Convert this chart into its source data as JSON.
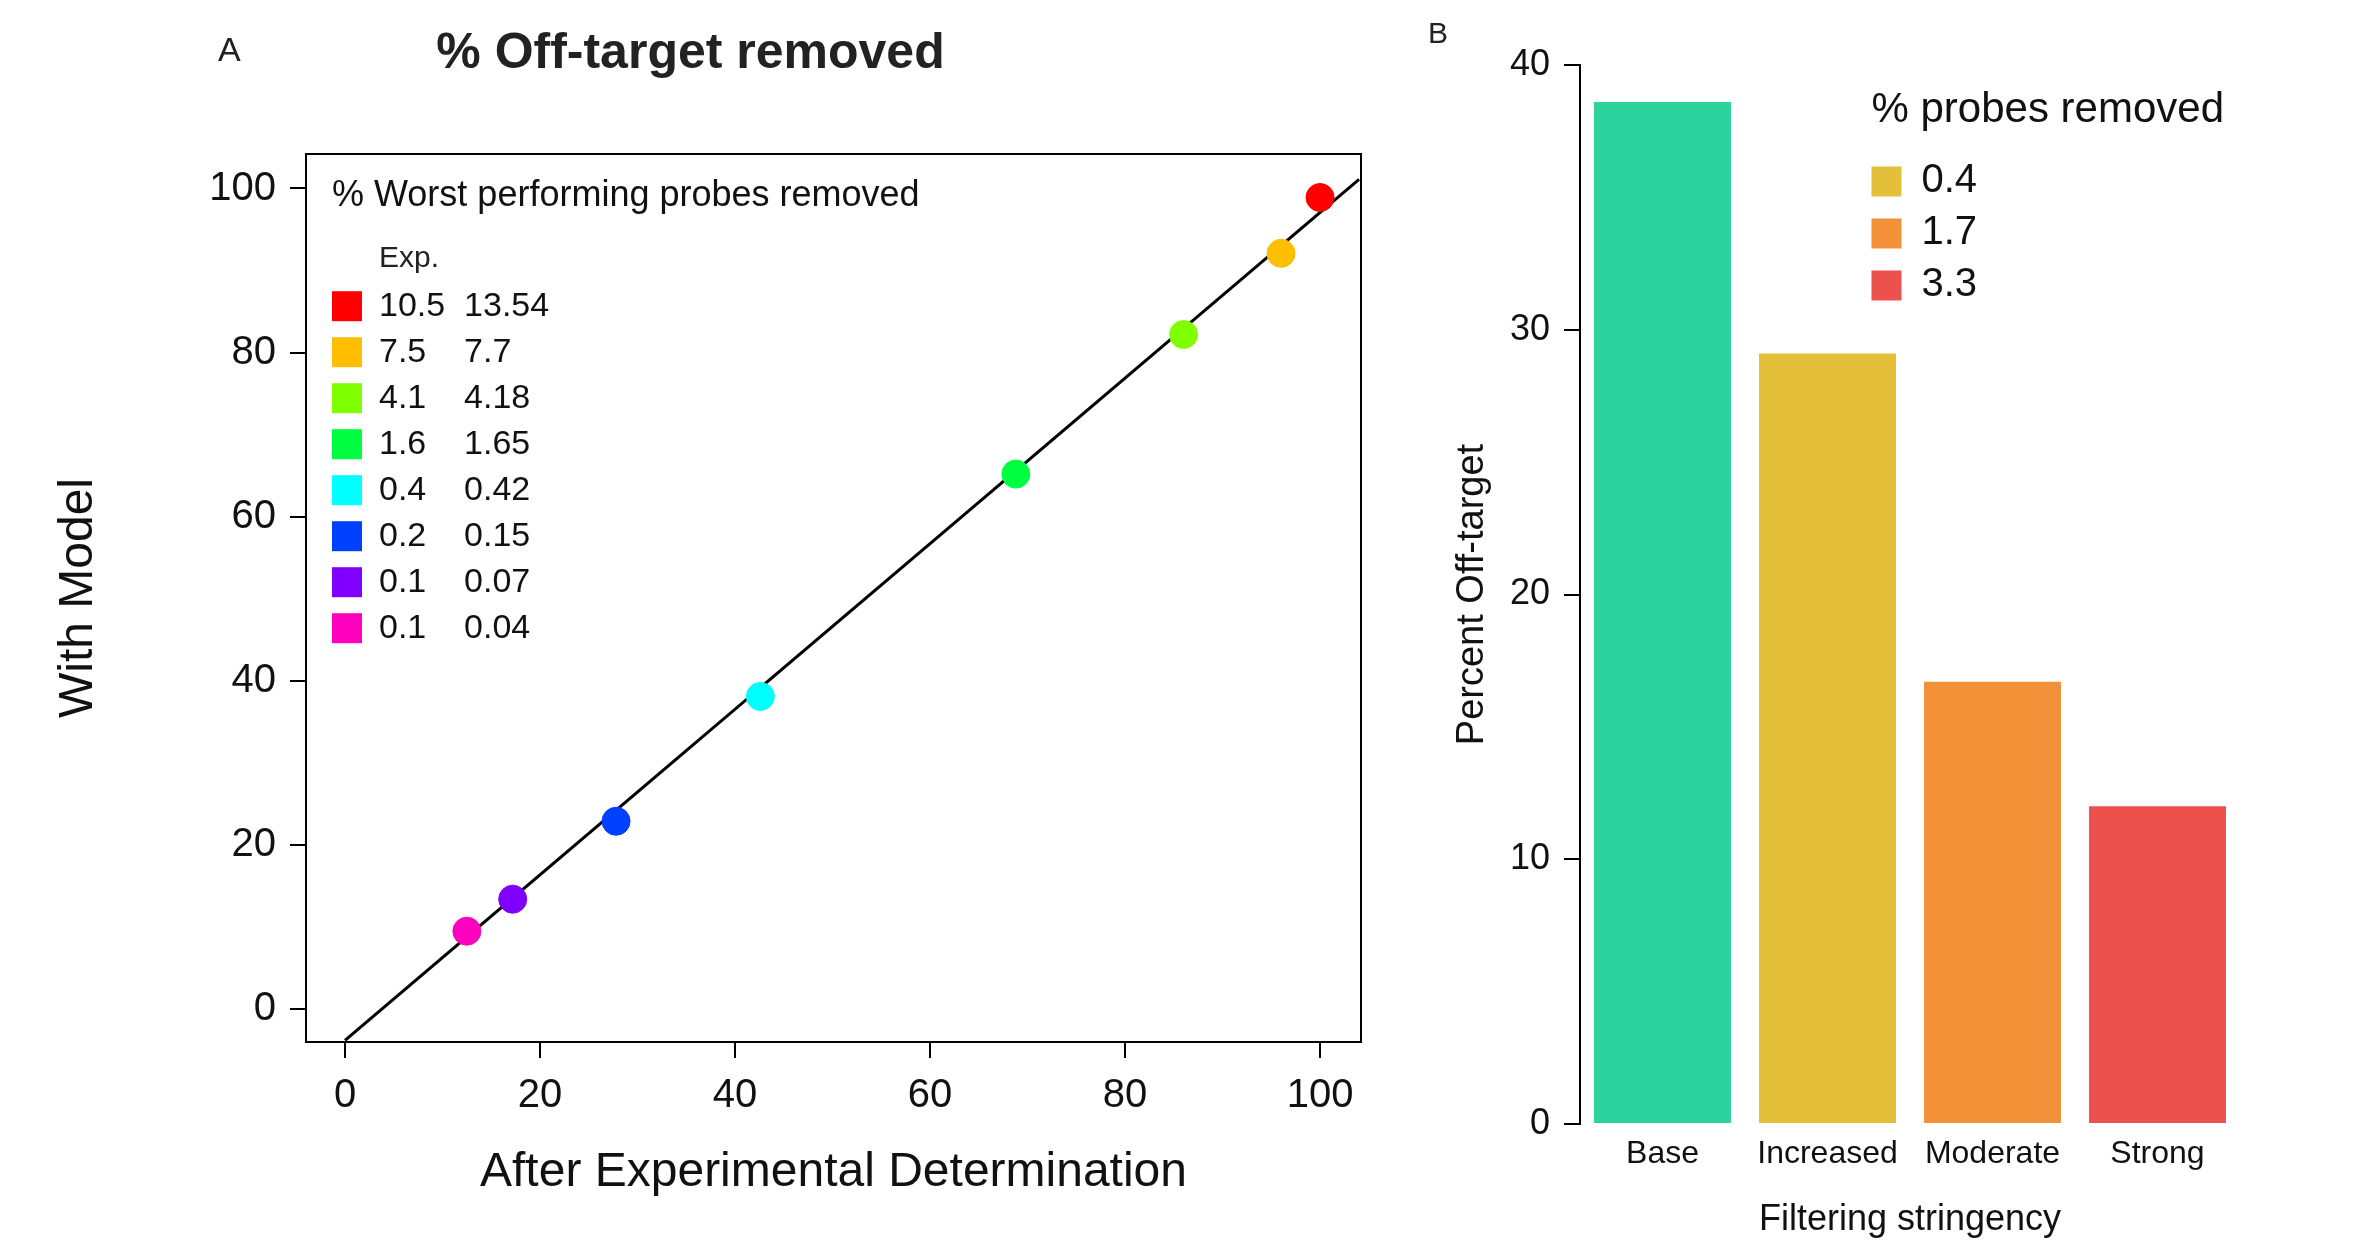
{
  "chart_data": [
    {
      "type": "scatter",
      "title": "% Off-target removed",
      "xlabel": "After Experimental Determination",
      "ylabel": "With Model",
      "legend_title": "% Worst performing probes removed",
      "annotations": [
        "A",
        "Exp."
      ],
      "xlim": [
        -4,
        104.2
      ],
      "ylim": [
        -4,
        104.2
      ],
      "xticks": [
        0,
        20,
        40,
        60,
        80,
        100
      ],
      "yticks": [
        0,
        20,
        40,
        60,
        80,
        100
      ],
      "marker": "circle",
      "legend": "top left",
      "series": [
        {
          "name": "10.5  13.54",
          "color": "#ff0000",
          "x": [
            100
          ],
          "values": [
            98.9
          ]
        },
        {
          "name": "7.5    7.7",
          "color": "#ffbf00",
          "x": [
            96.0
          ],
          "values": [
            92.1
          ]
        },
        {
          "name": "4.1    4.18",
          "color": "#80ff00",
          "x": [
            86.0
          ],
          "values": [
            82.2
          ]
        },
        {
          "name": "1.6    1.65",
          "color": "#00ff40",
          "x": [
            68.8
          ],
          "values": [
            65.2
          ]
        },
        {
          "name": "0.4    0.42",
          "color": "#00ffff",
          "x": [
            42.6
          ],
          "values": [
            38.1
          ]
        },
        {
          "name": "0.2    0.15",
          "color": "#0040ff",
          "x": [
            27.8
          ],
          "values": [
            22.9
          ]
        },
        {
          "name": "0.1    0.07",
          "color": "#8000ff",
          "x": [
            17.2
          ],
          "values": [
            13.4
          ]
        },
        {
          "name": "0.1    0.04",
          "color": "#ff00bf",
          "x": [
            12.5
          ],
          "values": [
            9.5
          ]
        },
        {
          "type": "line",
          "color": "#000000",
          "marker": "none",
          "x": [
            0,
            104
          ],
          "values": [
            -3.8,
            101.1
          ]
        }
      ]
    },
    {
      "type": "bar",
      "xlabel": "Filtering stringency",
      "ylabel": "Percent Off-target",
      "legend_title": "% probes removed",
      "annotations": [
        "B"
      ],
      "categories": [
        "Base",
        "Increased",
        "Moderate",
        "Strong"
      ],
      "ylim": [
        0,
        40
      ],
      "yticks": [
        0,
        10,
        20,
        30,
        40
      ],
      "legend": "top right",
      "series": [
        {
          "color": "#2cd39c",
          "values": [
            38.6,
            null,
            null,
            null
          ]
        },
        {
          "name": "0.4",
          "color": "#e3bf3a",
          "values": [
            null,
            29.1,
            null,
            null
          ]
        },
        {
          "name": "1.7",
          "color": "#f39139",
          "values": [
            null,
            null,
            16.7,
            null
          ]
        },
        {
          "name": "3.3",
          "color": "#ec514e",
          "values": [
            null,
            null,
            null,
            12.0
          ]
        }
      ]
    }
  ]
}
